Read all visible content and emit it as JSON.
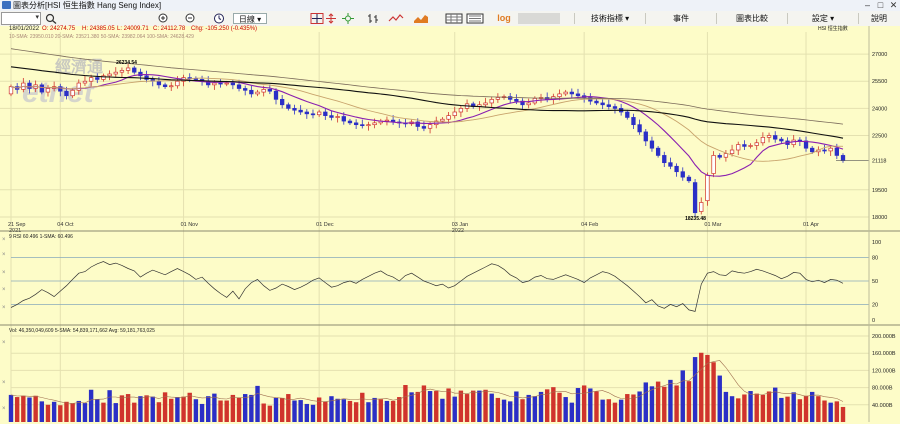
{
  "window": {
    "title": "圖表分析[HSI 恒生指數 Hang Seng Index]",
    "minimize": "–",
    "maximize": "□",
    "close": "✕"
  },
  "toolbar": {
    "period": "日線",
    "menus": {
      "indicators": "技術指標 ▾",
      "events": "事件",
      "compare": "圖表比較",
      "settings": "設定 ▾",
      "help": "說明"
    },
    "log_label": "log",
    "icons": [
      "search-icon",
      "zoom-in-icon",
      "zoom-out-icon",
      "clock-icon",
      "crosshair-icon",
      "pan-icon",
      "ohlc-icon",
      "line-icon",
      "area-icon",
      "grid-icon",
      "scale-icon"
    ]
  },
  "info_bar": {
    "date": "18/01/2022",
    "open": "O: 24274.75",
    "high": "H: 24385.05",
    "low": "L: 24009.71",
    "close": "C: 24112.78",
    "change": "Chg: -105.250 (-0.435%)",
    "sma_line": "10-SMA: 23950.010  20-SMA: 23521.380  50-SMA: 23982.064  100-SMA: 24628.429",
    "symbol": "HSI  恒生指數"
  },
  "watermark": {
    "text": "經濟通",
    "latin": "etnet"
  },
  "colors": {
    "background": "#fdfcc8",
    "up": "#d0342c",
    "down": "#2b2fc6",
    "sma10": "#8a1fb0",
    "sma20": "#c8a36c",
    "sma50": "#111111",
    "sma100": "#7a6a5a"
  },
  "price_panel": {
    "y_ticks": [
      "27000",
      "25500",
      "24000",
      "22500",
      "21118",
      "19500",
      "18000"
    ],
    "current": "21118",
    "peak_label": "26234.54",
    "trough_label": "18235.48",
    "x_ticks": [
      "21 Sep",
      "04 Oct",
      "01 Nov",
      "01 Dec",
      "03 Jan",
      "04 Feb",
      "01 Mar",
      "01 Apr"
    ],
    "year_labels": [
      "2021",
      "2022"
    ]
  },
  "rsi_panel": {
    "title": "9 RSI 60.496  1-SMA: 60.496",
    "y_ticks": [
      "100",
      "80",
      "50",
      "20",
      "0"
    ],
    "values": [
      16,
      20,
      25,
      28,
      33,
      39,
      35,
      30,
      37,
      44,
      52,
      60,
      62,
      68,
      72,
      75,
      71,
      73,
      70,
      66,
      63,
      55,
      60,
      64,
      61,
      58,
      62,
      66,
      62,
      58,
      52,
      55,
      47,
      40,
      34,
      29,
      37,
      27,
      40,
      48,
      52,
      44,
      38,
      41,
      46,
      43,
      39,
      42,
      46,
      51,
      54,
      48,
      42,
      44,
      48,
      50,
      47,
      52,
      56,
      60,
      63,
      58,
      55,
      50,
      57,
      60,
      55,
      50,
      47,
      44,
      46,
      41,
      44,
      50,
      56,
      60,
      64,
      68,
      72,
      70,
      65,
      58,
      54,
      48,
      50,
      55,
      57,
      53,
      52,
      55,
      58,
      55,
      52,
      48,
      54,
      58,
      62,
      60,
      56,
      50,
      44,
      37,
      30,
      22,
      26,
      18,
      15,
      20,
      17,
      21,
      13,
      11,
      46,
      60,
      62,
      58,
      57,
      63,
      61,
      60,
      62,
      65,
      63,
      60,
      57,
      53,
      56,
      61,
      60,
      52,
      49,
      51,
      48,
      52,
      51,
      47
    ]
  },
  "volume_panel": {
    "title": "Vol: 46,350,049,609  5-SMA: 54,839,171,662  Avg: 59,181,763,025",
    "y_ticks": [
      "200.000B",
      "160.000B",
      "120.000B",
      "80.000B",
      "40.000B"
    ],
    "values": [
      63,
      58,
      61,
      57,
      61,
      48,
      40,
      47,
      39,
      47,
      43,
      49,
      44,
      75,
      53,
      45,
      74,
      44,
      62,
      65,
      45,
      60,
      62,
      59,
      46,
      69,
      54,
      58,
      59,
      68,
      53,
      42,
      60,
      66,
      50,
      50,
      63,
      56,
      65,
      63,
      84,
      43,
      38,
      56,
      56,
      65,
      50,
      51,
      42,
      40,
      57,
      47,
      60,
      54,
      53,
      49,
      46,
      68,
      46,
      56,
      53,
      49,
      49,
      58,
      86,
      69,
      70,
      85,
      72,
      72,
      54,
      78,
      59,
      73,
      65,
      73,
      73,
      75,
      66,
      56,
      52,
      48,
      71,
      53,
      63,
      60,
      70,
      76,
      81,
      68,
      58,
      45,
      79,
      85,
      78,
      71,
      52,
      53,
      45,
      52,
      65,
      64,
      71,
      92,
      83,
      94,
      82,
      98,
      85,
      120,
      95,
      151,
      161,
      156,
      139,
      108,
      70,
      60,
      55,
      64,
      72,
      66,
      63,
      71,
      80,
      56,
      59,
      69,
      53,
      61,
      70,
      60,
      50,
      45,
      48,
      35
    ],
    "up": [
      0,
      1,
      1,
      0,
      1,
      0,
      1,
      0,
      1,
      1,
      1,
      0,
      0,
      0,
      0,
      1,
      0,
      0,
      1,
      1,
      1,
      0,
      1,
      0,
      1,
      1,
      1,
      0,
      1,
      1,
      0,
      0,
      0,
      0,
      1,
      1,
      1,
      1,
      0,
      0,
      0,
      1,
      1,
      0,
      1,
      1,
      0,
      0,
      0,
      0,
      1,
      1,
      0,
      0,
      0,
      1,
      1,
      1,
      0,
      0,
      1,
      0,
      1,
      1,
      1,
      0,
      1,
      1,
      0,
      1,
      0,
      1,
      0,
      1,
      1,
      1,
      0,
      1,
      0,
      1,
      0,
      0,
      0,
      1,
      0,
      0,
      0,
      1,
      1,
      1,
      0,
      0,
      0,
      1,
      0,
      1,
      0,
      1,
      1,
      0,
      1,
      1,
      0,
      0,
      0,
      1,
      1,
      0,
      1,
      0,
      1,
      0,
      1,
      1,
      1,
      0,
      0,
      0,
      1,
      1,
      0,
      1,
      1,
      1,
      0,
      0,
      1,
      0,
      1,
      1,
      0,
      1,
      1,
      0,
      1,
      1
    ]
  },
  "candles": {
    "n": 136,
    "close": [
      25200,
      25050,
      25400,
      25100,
      25300,
      24900,
      25100,
      25200,
      24950,
      24700,
      25000,
      25400,
      25500,
      25700,
      25600,
      25800,
      25900,
      26000,
      26100,
      26234,
      26000,
      25800,
      25600,
      25500,
      25300,
      25200,
      25250,
      25500,
      25700,
      25650,
      25600,
      25500,
      25300,
      25400,
      25350,
      25400,
      25300,
      25100,
      25000,
      24800,
      24900,
      25050,
      24950,
      24500,
      24200,
      24000,
      23900,
      23800,
      23700,
      23650,
      23800,
      23600,
      23500,
      23550,
      23300,
      23200,
      23100,
      23050,
      23100,
      23200,
      23300,
      23350,
      23250,
      23200,
      23150,
      23250,
      23000,
      22900,
      23100,
      23300,
      23400,
      23600,
      23800,
      24000,
      24250,
      24100,
      24200,
      24300,
      24500,
      24600,
      24650,
      24500,
      24400,
      24200,
      24300,
      24550,
      24600,
      24500,
      24650,
      24800,
      24900,
      24800,
      24700,
      24600,
      24400,
      24300,
      24200,
      24100,
      24000,
      23800,
      23500,
      23100,
      22700,
      22200,
      21800,
      21400,
      21000,
      20800,
      20500,
      20200,
      20000,
      18235,
      18800,
      20300,
      21400,
      21300,
      21500,
      21700,
      22000,
      21900,
      21950,
      22100,
      22400,
      22500,
      22300,
      22200,
      22000,
      22250,
      22200,
      21800,
      21600,
      21700,
      21650,
      21800,
      21400,
      21118
    ],
    "open": [
      24800,
      25200,
      25050,
      25400,
      25100,
      25300,
      24900,
      25100,
      25200,
      24950,
      24700,
      25000,
      25400,
      25500,
      25700,
      25600,
      25800,
      25900,
      26000,
      26100,
      26234,
      26000,
      25800,
      25600,
      25500,
      25300,
      25200,
      25250,
      25500,
      25700,
      25650,
      25600,
      25500,
      25300,
      25400,
      25350,
      25400,
      25300,
      25100,
      25000,
      24800,
      24900,
      25050,
      24950,
      24500,
      24200,
      24000,
      23900,
      23800,
      23700,
      23650,
      23800,
      23600,
      23500,
      23550,
      23300,
      23200,
      23100,
      23050,
      23100,
      23200,
      23300,
      23350,
      23250,
      23200,
      23150,
      23250,
      23000,
      22900,
      23100,
      23300,
      23400,
      23600,
      23800,
      24000,
      24250,
      24100,
      24200,
      24300,
      24500,
      24600,
      24650,
      24500,
      24400,
      24200,
      24300,
      24550,
      24600,
      24500,
      24650,
      24800,
      24900,
      24800,
      24700,
      24600,
      24400,
      24300,
      24200,
      24100,
      24000,
      23800,
      23500,
      23100,
      22700,
      22200,
      21800,
      21400,
      21000,
      20800,
      20500,
      20200,
      19900,
      18300,
      18900,
      20400,
      21400,
      21300,
      21500,
      21700,
      22000,
      21900,
      21950,
      22100,
      22400,
      22500,
      22300,
      22200,
      22000,
      22250,
      22200,
      21800,
      21600,
      21700,
      21650,
      21800,
      21400
    ]
  }
}
